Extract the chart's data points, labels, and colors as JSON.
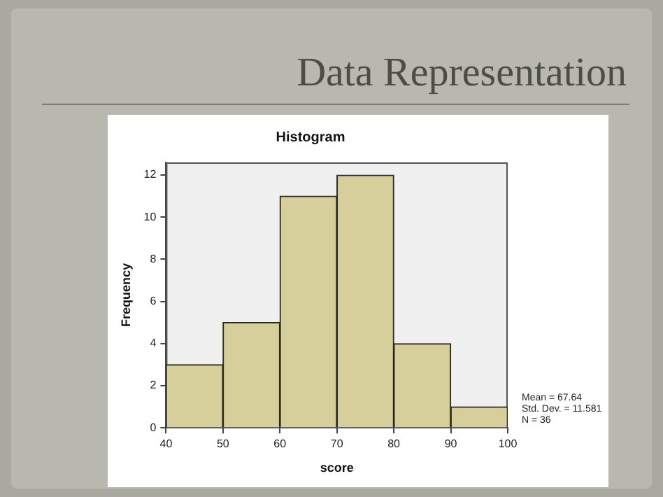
{
  "chart_data": {
    "type": "histogram",
    "title": "Data Representation",
    "subtitle": "Histogram",
    "xlabel": "score",
    "ylabel": "Frequency",
    "bins": [
      40,
      50,
      60,
      70,
      80,
      90,
      100
    ],
    "values": [
      3,
      5,
      11,
      12,
      4,
      1
    ],
    "color": "#d6cf9c",
    "xlim": [
      40,
      100
    ],
    "xticks": [
      40,
      50,
      60,
      70,
      80,
      90,
      100
    ],
    "ylim": [
      0,
      12.6
    ],
    "yticks": [
      0,
      2,
      4,
      6,
      8,
      10,
      12
    ],
    "grid": false,
    "legend": false,
    "annotations": [
      "Mean = 67.64",
      "Std. Dev. = 11.581",
      "N = 36"
    ]
  }
}
